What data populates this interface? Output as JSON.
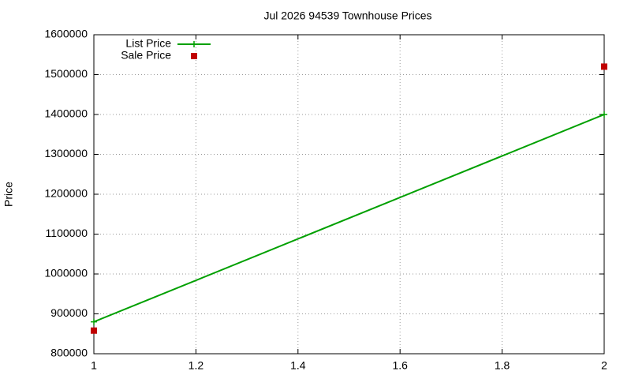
{
  "chart_data": {
    "type": "line",
    "title": "Jul 2026 94539 Townhouse Prices",
    "y_label": "Price",
    "x": [
      1,
      2
    ],
    "series": [
      {
        "name": "List Price",
        "color": "#00a000",
        "style": "linespoints",
        "values": [
          880000,
          1400000
        ]
      },
      {
        "name": "Sale Price",
        "color": "#c00000",
        "style": "points",
        "values": [
          858000,
          1520000
        ]
      }
    ],
    "xlim": [
      1,
      2
    ],
    "xticks": [
      1,
      1.2,
      1.4,
      1.6,
      1.8,
      2
    ],
    "ylim": [
      800000,
      1600000
    ],
    "yticks": [
      800000,
      900000,
      1000000,
      1100000,
      1200000,
      1300000,
      1400000,
      1500000,
      1600000
    ],
    "grid": true,
    "legend": "top-left"
  }
}
